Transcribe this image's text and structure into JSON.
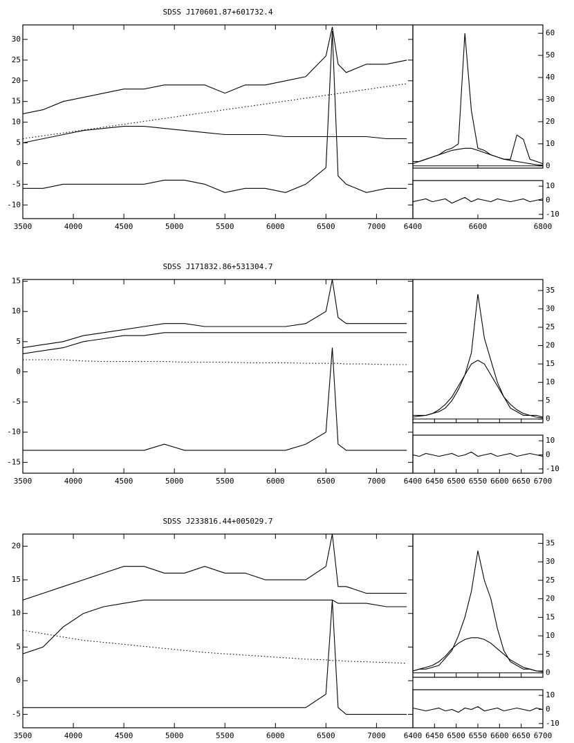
{
  "chart_data": [
    {
      "type": "line",
      "title": "SDSS J170601.87+601732.4",
      "x": [
        3500,
        3700,
        3900,
        4100,
        4300,
        4500,
        4700,
        4900,
        5100,
        5300,
        5500,
        5700,
        5900,
        6100,
        6300,
        6500,
        6563,
        6620,
        6700,
        6900,
        7100,
        7300
      ],
      "xlim": [
        3500,
        7360
      ],
      "xticks": [
        3500,
        4000,
        4500,
        5000,
        5500,
        6000,
        6500,
        7000
      ],
      "ylim": [
        -13.3,
        33.5
      ],
      "yticks": [
        -10,
        -5,
        0,
        5,
        10,
        15,
        20,
        25,
        30
      ],
      "series": [
        {
          "color": "#000000",
          "style": "solid",
          "values": [
            12,
            13,
            15,
            16,
            17,
            18,
            18,
            19,
            19,
            19,
            17,
            19,
            19,
            20,
            21,
            26,
            33,
            24,
            22,
            24,
            24,
            25
          ]
        },
        {
          "color": "#000000",
          "style": "solid",
          "values": [
            5,
            6,
            7,
            8,
            8.5,
            9,
            9,
            8.5,
            8,
            7.5,
            7,
            7,
            7,
            6.5,
            6.5,
            6.5,
            6.5,
            6.5,
            6.5,
            6.5,
            6,
            6
          ]
        },
        {
          "color": "#000000",
          "style": "dotted",
          "values": [
            6,
            6.7,
            7.4,
            8.1,
            8.8,
            9.5,
            10.2,
            10.9,
            11.6,
            12.3,
            13,
            13.7,
            14.4,
            15.1,
            15.8,
            16.5,
            16.7,
            16.9,
            17.2,
            17.9,
            18.6,
            19.3
          ]
        },
        {
          "color": "#000000",
          "style": "solid",
          "values": [
            -6,
            -6,
            -5,
            -5,
            -5,
            -5,
            -5,
            -4,
            -4,
            -5,
            -7,
            -6,
            -6,
            -7,
            -5,
            -1,
            32,
            -3,
            -5,
            -7,
            -6,
            -6
          ]
        }
      ],
      "inset": {
        "x": [
          6400,
          6420,
          6440,
          6460,
          6480,
          6500,
          6520,
          6540,
          6560,
          6580,
          6600,
          6620,
          6640,
          6660,
          6680,
          6700,
          6720,
          6740,
          6760,
          6780,
          6800
        ],
        "xlim": [
          6400,
          6800
        ],
        "xticks": [
          6400,
          6600,
          6800
        ],
        "ylim": [
          -1,
          63.8
        ],
        "yticks": [
          0,
          10,
          20,
          30,
          40,
          50,
          60
        ],
        "series": [
          {
            "color": "#000000",
            "style": "solid",
            "values": [
              2,
              2,
              3,
              4,
              5,
              7,
              8,
              10,
              60,
              25,
              8,
              7,
              5,
              4,
              3,
              3,
              14,
              12,
              3,
              2,
              1
            ]
          },
          {
            "color": "#000000",
            "style": "solid",
            "values": [
              1,
              2,
              3,
              4,
              5,
              6,
              7,
              7.5,
              8,
              8,
              7,
              6,
              5,
              4,
              3,
              2.5,
              2,
              1.5,
              1,
              0.5,
              0.3
            ]
          }
        ],
        "residual": {
          "ylim": [
            -13,
            14
          ],
          "yticks": [
            -10,
            0,
            10
          ],
          "values": [
            -1,
            0,
            1,
            -1,
            0,
            1,
            -2,
            0,
            2,
            -1,
            1,
            0,
            -1,
            1,
            0,
            -1,
            0,
            1,
            -1,
            0,
            1
          ]
        }
      }
    },
    {
      "type": "line",
      "title": "SDSS J171832.86+531304.7",
      "x": [
        3500,
        3700,
        3900,
        4100,
        4300,
        4500,
        4700,
        4900,
        5100,
        5300,
        5500,
        5700,
        5900,
        6100,
        6300,
        6500,
        6563,
        6620,
        6700,
        6900,
        7100,
        7300
      ],
      "xlim": [
        3500,
        7360
      ],
      "xticks": [
        3500,
        4000,
        4500,
        5000,
        5500,
        6000,
        6500,
        7000
      ],
      "ylim": [
        -16.8,
        15.3
      ],
      "yticks": [
        -15,
        -10,
        -5,
        0,
        5,
        10,
        15
      ],
      "series": [
        {
          "color": "#000000",
          "style": "solid",
          "values": [
            4,
            4.5,
            5,
            6,
            6.5,
            7,
            7.5,
            8,
            8,
            7.5,
            7.5,
            7.5,
            7.5,
            7.5,
            8,
            10,
            15.3,
            9,
            8,
            8,
            8,
            8
          ]
        },
        {
          "color": "#000000",
          "style": "solid",
          "values": [
            3,
            3.5,
            4,
            5,
            5.5,
            6,
            6,
            6.5,
            6.5,
            6.5,
            6.5,
            6.5,
            6.5,
            6.5,
            6.5,
            6.5,
            6.5,
            6.5,
            6.5,
            6.5,
            6.5,
            6.5
          ]
        },
        {
          "color": "#000000",
          "style": "dotted",
          "values": [
            2,
            2,
            2,
            1.8,
            1.7,
            1.7,
            1.7,
            1.7,
            1.6,
            1.6,
            1.6,
            1.5,
            1.5,
            1.5,
            1.4,
            1.4,
            1.4,
            1.4,
            1.3,
            1.3,
            1.2,
            1.2
          ]
        },
        {
          "color": "#000000",
          "style": "solid",
          "values": [
            -13,
            -13,
            -13,
            -13,
            -13,
            -13,
            -13,
            -12,
            -13,
            -13,
            -13,
            -13,
            -13,
            -13,
            -12,
            -10,
            4,
            -12,
            -13,
            -13,
            -13,
            -13
          ]
        }
      ],
      "inset": {
        "x": [
          6400,
          6415,
          6430,
          6445,
          6460,
          6475,
          6490,
          6505,
          6520,
          6535,
          6550,
          6565,
          6580,
          6595,
          6610,
          6625,
          6640,
          6655,
          6670,
          6685,
          6700
        ],
        "xlim": [
          6400,
          6700
        ],
        "xticks": [
          6400,
          6450,
          6500,
          6550,
          6600,
          6650,
          6700
        ],
        "ylim": [
          -1,
          38
        ],
        "yticks": [
          0,
          5,
          10,
          15,
          20,
          25,
          30,
          35
        ],
        "series": [
          {
            "color": "#000000",
            "style": "solid",
            "values": [
              1,
              1,
              1,
              1.5,
              2,
              3,
              5,
              8,
              12,
              18,
              34,
              22,
              16,
              10,
              6,
              3,
              2,
              1,
              1,
              1,
              0.5
            ]
          },
          {
            "color": "#000000",
            "style": "solid",
            "values": [
              0.5,
              0.8,
              1,
              1.5,
              2.5,
              4,
              6,
              9,
              12,
              15,
              16,
              15,
              12,
              9,
              6,
              4,
              2.5,
              1.5,
              1,
              0.5,
              0.3
            ]
          }
        ],
        "residual": {
          "ylim": [
            -13,
            14
          ],
          "yticks": [
            -10,
            0,
            10
          ],
          "values": [
            0,
            -1,
            1,
            0,
            -1,
            0,
            1,
            -1,
            0,
            2,
            -1,
            0,
            1,
            -1,
            0,
            1,
            -1,
            0,
            1,
            0,
            -1
          ]
        }
      }
    },
    {
      "type": "line",
      "title": "SDSS J233816.44+005029.7",
      "x": [
        3500,
        3700,
        3900,
        4100,
        4300,
        4500,
        4700,
        4900,
        5100,
        5300,
        5500,
        5700,
        5900,
        6100,
        6300,
        6500,
        6563,
        6620,
        6700,
        6900,
        7100,
        7300
      ],
      "xlim": [
        3500,
        7360
      ],
      "xticks": [
        3500,
        4000,
        4500,
        5000,
        5500,
        6000,
        6500,
        7000
      ],
      "ylim": [
        -7,
        21.8
      ],
      "yticks": [
        -5,
        0,
        5,
        10,
        15,
        20
      ],
      "series": [
        {
          "color": "#000000",
          "style": "solid",
          "values": [
            12,
            13,
            14,
            15,
            16,
            17,
            17,
            16,
            16,
            17,
            16,
            16,
            15,
            15,
            15,
            17,
            21.8,
            14,
            14,
            13,
            13,
            13
          ]
        },
        {
          "color": "#000000",
          "style": "solid",
          "values": [
            4,
            5,
            8,
            10,
            11,
            11.5,
            12,
            12,
            12,
            12,
            12,
            12,
            12,
            12,
            12,
            12,
            12,
            11.5,
            11.5,
            11.5,
            11,
            11
          ]
        },
        {
          "color": "#000000",
          "style": "dotted",
          "values": [
            7.5,
            7,
            6.5,
            6,
            5.7,
            5.4,
            5.1,
            4.8,
            4.5,
            4.2,
            4,
            3.8,
            3.6,
            3.4,
            3.2,
            3.1,
            3,
            3,
            2.9,
            2.8,
            2.7,
            2.6
          ]
        },
        {
          "color": "#000000",
          "style": "solid",
          "values": [
            -4,
            -4,
            -4,
            -4,
            -4,
            -4,
            -4,
            -4,
            -4,
            -4,
            -4,
            -4,
            -4,
            -4,
            -4,
            -2,
            12,
            -4,
            -5,
            -5,
            -5,
            -5
          ]
        }
      ],
      "inset": {
        "x": [
          6400,
          6415,
          6430,
          6445,
          6460,
          6475,
          6490,
          6505,
          6520,
          6535,
          6550,
          6565,
          6580,
          6595,
          6610,
          6625,
          6640,
          6655,
          6670,
          6685,
          6700
        ],
        "xlim": [
          6400,
          6700
        ],
        "xticks": [
          6400,
          6450,
          6500,
          6550,
          6600,
          6650,
          6700
        ],
        "ylim": [
          -1.2,
          37.5
        ],
        "yticks": [
          0,
          5,
          10,
          15,
          20,
          25,
          30,
          35
        ],
        "series": [
          {
            "color": "#000000",
            "style": "solid",
            "values": [
              0.5,
              1,
              1,
              1.5,
              2,
              4,
              6,
              10,
              15,
              22,
              33,
              25,
              20,
              12,
              6,
              3,
              2,
              1,
              1,
              0.5,
              0.5
            ]
          },
          {
            "color": "#000000",
            "style": "solid",
            "values": [
              0.5,
              1,
              1.5,
              2,
              3,
              4.5,
              6.5,
              8,
              9,
              9.5,
              9.5,
              9,
              8,
              6.5,
              5,
              3.5,
              2.5,
              1.5,
              1,
              0.5,
              0.3
            ]
          }
        ],
        "residual": {
          "ylim": [
            -13,
            14
          ],
          "yticks": [
            -10,
            0,
            10
          ],
          "values": [
            1,
            0,
            -1,
            0,
            1,
            -1,
            0,
            -2,
            1,
            0,
            2,
            -1,
            0,
            1,
            -1,
            0,
            1,
            0,
            -1,
            1,
            0
          ]
        }
      }
    }
  ]
}
